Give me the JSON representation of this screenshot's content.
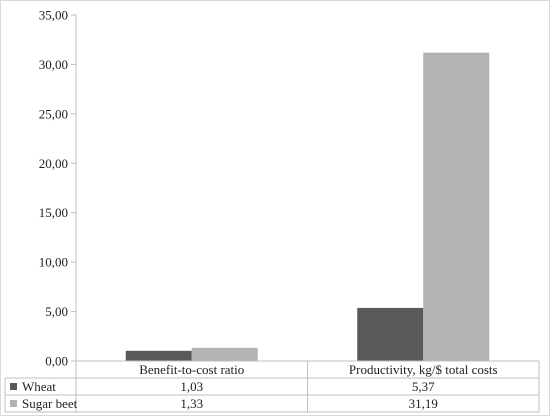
{
  "chart_data": {
    "type": "bar",
    "categories": [
      "Benefit-to-cost ratio",
      "Productivity, kg/$ total costs"
    ],
    "series": [
      {
        "name": "Wheat",
        "values": [
          1.03,
          5.37
        ],
        "labels": [
          "1,03",
          "5,37"
        ],
        "color": "#595959"
      },
      {
        "name": "Sugar beet",
        "values": [
          1.33,
          31.19
        ],
        "labels": [
          "1,33",
          "31,19"
        ],
        "color": "#b3b3b3"
      }
    ],
    "ylim": [
      0,
      35
    ],
    "yticks": [
      0,
      5,
      10,
      15,
      20,
      25,
      30,
      35
    ],
    "ytick_labels": [
      "0,00",
      "5,00",
      "10,00",
      "15,00",
      "20,00",
      "25,00",
      "30,00",
      "35,00"
    ],
    "grid": false,
    "legend": "data-table-left",
    "title": "",
    "xlabel": "",
    "ylabel": ""
  }
}
